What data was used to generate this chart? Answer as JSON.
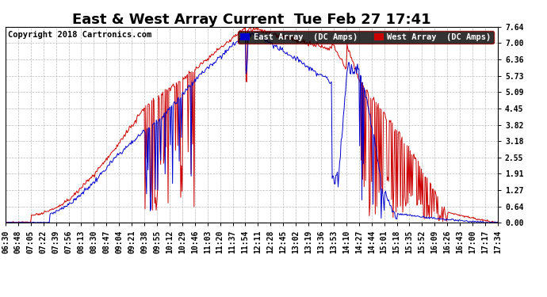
{
  "title": "East & West Array Current  Tue Feb 27 17:41",
  "copyright": "Copyright 2018 Cartronics.com",
  "legend_east": "East Array  (DC Amps)",
  "legend_west": "West Array  (DC Amps)",
  "east_color": "#0000cc",
  "west_color": "#cc0000",
  "background_color": "#ffffff",
  "plot_bg_color": "#ffffff",
  "grid_color": "#aaaaaa",
  "ylim": [
    0.0,
    7.64
  ],
  "yticks": [
    0.0,
    0.64,
    1.27,
    1.91,
    2.55,
    3.18,
    3.82,
    4.45,
    5.09,
    5.73,
    6.36,
    7.0,
    7.64
  ],
  "xtick_labels": [
    "06:30",
    "06:48",
    "07:05",
    "07:22",
    "07:39",
    "07:56",
    "08:13",
    "08:30",
    "08:47",
    "09:04",
    "09:21",
    "09:38",
    "09:55",
    "10:12",
    "10:29",
    "10:46",
    "11:03",
    "11:20",
    "11:37",
    "11:54",
    "12:11",
    "12:28",
    "12:45",
    "13:02",
    "13:19",
    "13:36",
    "13:53",
    "14:10",
    "14:27",
    "14:44",
    "15:01",
    "15:18",
    "15:35",
    "15:52",
    "16:09",
    "16:26",
    "16:43",
    "17:00",
    "17:17",
    "17:34"
  ],
  "title_fontsize": 13,
  "tick_fontsize": 7,
  "copyright_fontsize": 7.5,
  "legend_fontsize": 7.5
}
